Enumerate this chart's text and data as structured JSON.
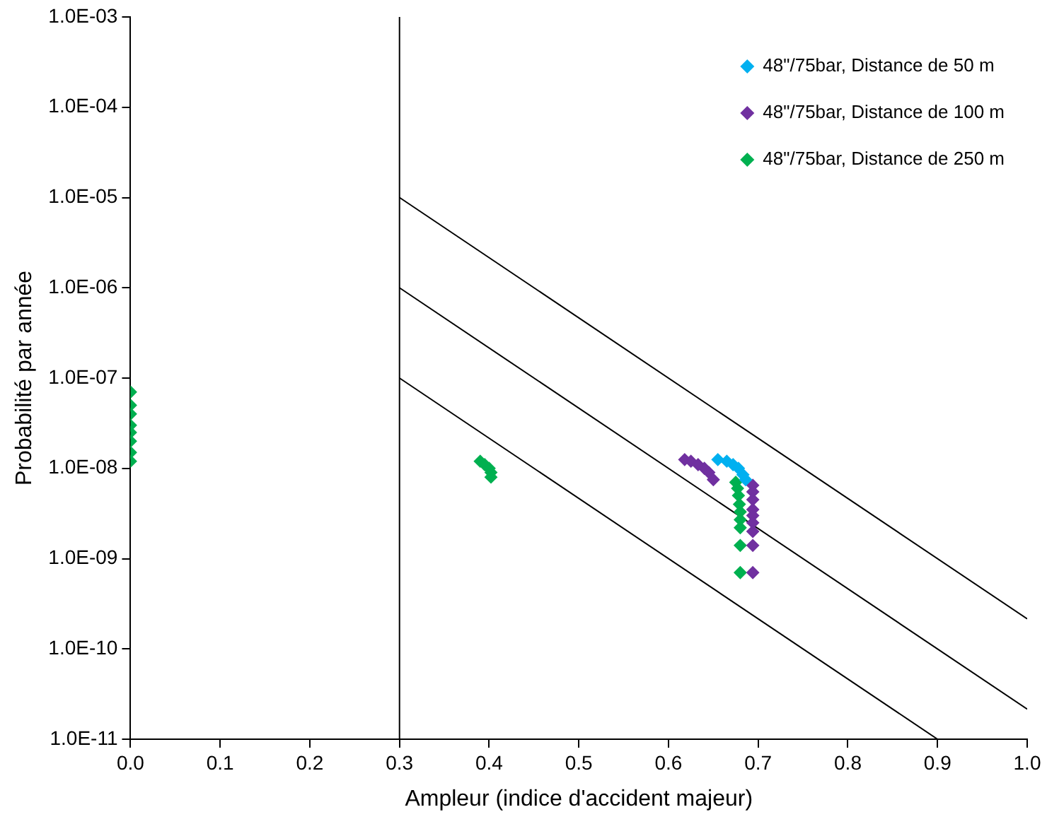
{
  "chart_data": {
    "type": "scatter",
    "xlabel": "Ampleur (indice d'accident majeur)",
    "ylabel": "Probabilité par année",
    "log": "y",
    "grid": false,
    "legend": "top right",
    "marker": "diamond",
    "xlim": [
      0,
      1
    ],
    "xticks": [
      {
        "value": 0,
        "label": "0.0"
      },
      0.1,
      0.2,
      0.3,
      0.4,
      0.5,
      0.6,
      0.7,
      0.8,
      0.9,
      {
        "value": 1,
        "label": "1.0"
      }
    ],
    "ylim": [
      1e-11,
      0.001
    ],
    "yticks": [
      {
        "value": 1e-11,
        "label": "1.0E-11"
      },
      {
        "value": 1e-10,
        "label": "1.0E-10"
      },
      {
        "value": 1e-09,
        "label": "1.0E-09"
      },
      {
        "value": 1e-08,
        "label": "1.0E-08"
      },
      {
        "value": 1e-07,
        "label": "1.0E-07"
      },
      {
        "value": 1e-06,
        "label": "1.0E-06"
      },
      {
        "value": 1e-05,
        "label": "1.0E-05"
      },
      {
        "value": 0.0001,
        "label": "1.0E-04"
      },
      {
        "value": 0.001,
        "label": "1.0E-03"
      }
    ],
    "ref_lines": [
      {
        "axis": "x",
        "value": 0.3,
        "color": "#000000"
      }
    ],
    "series": [
      {
        "name": "48\"/75bar, Distance de 50 m",
        "color": "#00b0f0",
        "x": [
          0.655,
          0.665,
          0.672,
          0.678,
          0.683,
          0.686
        ],
        "values": [
          1.25e-08,
          1.2e-08,
          1.1e-08,
          1e-08,
          8.5e-09,
          7.5e-09
        ]
      },
      {
        "name": "48\"/75bar, Distance de 100 m",
        "color": "#7030a0",
        "x": [
          0.618,
          0.625,
          0.633,
          0.64,
          0.645,
          0.65,
          0.694,
          0.694,
          0.694,
          0.694,
          0.694,
          0.694,
          0.694,
          0.694,
          0.694
        ],
        "values": [
          1.25e-08,
          1.2e-08,
          1.1e-08,
          1e-08,
          9e-09,
          7.5e-09,
          6.5e-09,
          5.5e-09,
          4.5e-09,
          3.5e-09,
          3e-09,
          2.5e-09,
          2e-09,
          1.4e-09,
          7e-10
        ]
      },
      {
        "name": "48\"/75bar, Distance de 250 m",
        "color": "#00b050",
        "x": [
          0,
          0,
          0,
          0,
          0,
          0,
          0,
          0,
          0.39,
          0.395,
          0.4,
          0.402,
          0.402,
          0.675,
          0.677,
          0.678,
          0.679,
          0.68,
          0.68,
          0.68,
          0.68,
          0.68
        ],
        "values": [
          7e-08,
          5e-08,
          4e-08,
          3e-08,
          2.5e-08,
          2e-08,
          1.5e-08,
          1.2e-08,
          1.2e-08,
          1.1e-08,
          1e-08,
          9e-09,
          8e-09,
          7e-09,
          6e-09,
          5e-09,
          4e-09,
          3.3e-09,
          2.7e-09,
          2.2e-09,
          1.4e-09,
          7e-10
        ]
      },
      {
        "type": "line",
        "color": "#000000",
        "marker": "none",
        "x": [
          0.3,
          1
        ],
        "values": [
          1e-05,
          2.15e-10
        ]
      },
      {
        "type": "line",
        "color": "#000000",
        "marker": "none",
        "x": [
          0.3,
          1
        ],
        "values": [
          1e-06,
          2.15e-11
        ]
      },
      {
        "type": "line",
        "color": "#000000",
        "marker": "none",
        "x": [
          0.3,
          0.9
        ],
        "values": [
          1e-07,
          1e-11
        ]
      }
    ]
  }
}
